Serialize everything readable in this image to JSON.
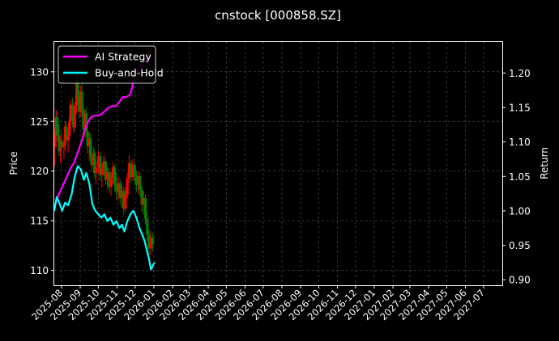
{
  "chart_data": {
    "type": "line",
    "title": "cnstock [000858.SZ]",
    "ylabel_left": "Price",
    "ylabel_right": "Return",
    "ylim_left": [
      108.5,
      133.0
    ],
    "ylim_right": [
      0.892,
      1.245
    ],
    "xlim": [
      "2025-07-20",
      "2027-08-01"
    ],
    "x_ticks": [
      "2025-08",
      "2025-09",
      "2025-10",
      "2025-11",
      "2025-12",
      "2026-01",
      "2026-02",
      "2026-03",
      "2026-04",
      "2026-05",
      "2026-06",
      "2026-07",
      "2026-08",
      "2026-09",
      "2026-10",
      "2026-11",
      "2026-12",
      "2027-01",
      "2027-02",
      "2027-03",
      "2027-04",
      "2027-05",
      "2027-06",
      "2027-07"
    ],
    "y_ticks_left": [
      "110",
      "115",
      "120",
      "125",
      "130"
    ],
    "y_ticks_right": [
      "0.90",
      "0.95",
      "1.00",
      "1.05",
      "1.10",
      "1.15",
      "1.20"
    ],
    "grid": true,
    "legend_position": "top-left",
    "colors": {
      "background": "#000000",
      "strategy": "#ff00ff",
      "buyhold": "#00ffff",
      "candle_up": "#ff0000",
      "candle_down": "#008000",
      "grid": "#555555"
    },
    "series": [
      {
        "name": "AI Strategy",
        "axis": "right",
        "points": [
          [
            "2025-07-20",
            1.005
          ],
          [
            "2025-07-28",
            1.025
          ],
          [
            "2025-08-05",
            1.04
          ],
          [
            "2025-08-10",
            1.05
          ],
          [
            "2025-08-16",
            1.062
          ],
          [
            "2025-08-22",
            1.07
          ],
          [
            "2025-08-28",
            1.085
          ],
          [
            "2025-09-03",
            1.1
          ],
          [
            "2025-09-08",
            1.115
          ],
          [
            "2025-09-13",
            1.128
          ],
          [
            "2025-09-18",
            1.135
          ],
          [
            "2025-09-24",
            1.138
          ],
          [
            "2025-09-30",
            1.138
          ],
          [
            "2025-10-06",
            1.14
          ],
          [
            "2025-10-12",
            1.145
          ],
          [
            "2025-10-18",
            1.15
          ],
          [
            "2025-10-24",
            1.152
          ],
          [
            "2025-10-30",
            1.152
          ],
          [
            "2025-11-05",
            1.158
          ],
          [
            "2025-11-10",
            1.165
          ],
          [
            "2025-11-16",
            1.165
          ],
          [
            "2025-11-22",
            1.168
          ],
          [
            "2025-11-26",
            1.178
          ],
          [
            "2025-11-30",
            1.2
          ],
          [
            "2025-12-06",
            1.205
          ],
          [
            "2025-12-14",
            1.212
          ],
          [
            "2025-12-22",
            1.225
          ],
          [
            "2025-12-27",
            1.232
          ]
        ]
      },
      {
        "name": "Buy-and-Hold",
        "axis": "right",
        "points": [
          [
            "2025-07-20",
            1.0
          ],
          [
            "2025-07-24",
            1.02
          ],
          [
            "2025-07-28",
            1.012
          ],
          [
            "2025-08-02",
            1.0
          ],
          [
            "2025-08-07",
            1.012
          ],
          [
            "2025-08-12",
            1.008
          ],
          [
            "2025-08-18",
            1.025
          ],
          [
            "2025-08-23",
            1.05
          ],
          [
            "2025-08-28",
            1.065
          ],
          [
            "2025-09-02",
            1.06
          ],
          [
            "2025-09-07",
            1.045
          ],
          [
            "2025-09-11",
            1.055
          ],
          [
            "2025-09-16",
            1.04
          ],
          [
            "2025-09-21",
            1.01
          ],
          [
            "2025-09-26",
            1.0
          ],
          [
            "2025-10-01",
            0.995
          ],
          [
            "2025-10-06",
            0.99
          ],
          [
            "2025-10-11",
            0.995
          ],
          [
            "2025-10-16",
            0.985
          ],
          [
            "2025-10-21",
            0.99
          ],
          [
            "2025-10-26",
            0.98
          ],
          [
            "2025-10-31",
            0.985
          ],
          [
            "2025-11-05",
            0.975
          ],
          [
            "2025-11-09",
            0.98
          ],
          [
            "2025-11-13",
            0.97
          ],
          [
            "2025-11-18",
            0.985
          ],
          [
            "2025-11-23",
            0.995
          ],
          [
            "2025-11-28",
            1.0
          ],
          [
            "2025-12-03",
            0.99
          ],
          [
            "2025-12-08",
            0.975
          ],
          [
            "2025-12-13",
            0.965
          ],
          [
            "2025-12-17",
            0.955
          ],
          [
            "2025-12-21",
            0.94
          ],
          [
            "2025-12-24",
            0.93
          ],
          [
            "2025-12-26",
            0.92
          ],
          [
            "2025-12-27",
            0.915
          ],
          [
            "2025-12-29",
            0.918
          ],
          [
            "2025-12-31",
            0.922
          ],
          [
            "2026-01-02",
            0.925
          ]
        ]
      }
    ],
    "candles": [
      {
        "date": "2025-07-21",
        "open": 122.5,
        "high": 124.3,
        "low": 120.5,
        "close": 123.8
      },
      {
        "date": "2025-07-23",
        "open": 123.8,
        "high": 126.2,
        "low": 122.4,
        "close": 125.4
      },
      {
        "date": "2025-07-25",
        "open": 125.4,
        "high": 126.0,
        "low": 123.0,
        "close": 123.6
      },
      {
        "date": "2025-07-28",
        "open": 123.6,
        "high": 124.8,
        "low": 121.5,
        "close": 122.0
      },
      {
        "date": "2025-07-30",
        "open": 122.0,
        "high": 123.6,
        "low": 120.8,
        "close": 123.1
      },
      {
        "date": "2025-08-01",
        "open": 123.1,
        "high": 124.0,
        "low": 121.9,
        "close": 122.4
      },
      {
        "date": "2025-08-05",
        "open": 122.4,
        "high": 123.5,
        "low": 121.2,
        "close": 122.9
      },
      {
        "date": "2025-08-07",
        "open": 122.9,
        "high": 125.0,
        "low": 122.0,
        "close": 124.5
      },
      {
        "date": "2025-08-09",
        "open": 124.5,
        "high": 124.9,
        "low": 122.6,
        "close": 123.1
      },
      {
        "date": "2025-08-12",
        "open": 123.1,
        "high": 124.2,
        "low": 121.9,
        "close": 123.6
      },
      {
        "date": "2025-08-14",
        "open": 123.6,
        "high": 125.6,
        "low": 123.0,
        "close": 125.0
      },
      {
        "date": "2025-08-16",
        "open": 125.0,
        "high": 127.2,
        "low": 124.2,
        "close": 126.7
      },
      {
        "date": "2025-08-19",
        "open": 126.7,
        "high": 127.4,
        "low": 124.7,
        "close": 125.2
      },
      {
        "date": "2025-08-21",
        "open": 125.2,
        "high": 126.3,
        "low": 123.8,
        "close": 124.4
      },
      {
        "date": "2025-08-23",
        "open": 124.4,
        "high": 127.0,
        "low": 124.0,
        "close": 126.6
      },
      {
        "date": "2025-08-26",
        "open": 126.6,
        "high": 130.0,
        "low": 125.8,
        "close": 129.3
      },
      {
        "date": "2025-08-28",
        "open": 129.3,
        "high": 130.4,
        "low": 126.8,
        "close": 127.5
      },
      {
        "date": "2025-08-30",
        "open": 127.5,
        "high": 128.2,
        "low": 125.3,
        "close": 126.0
      },
      {
        "date": "2025-09-02",
        "open": 126.0,
        "high": 128.6,
        "low": 125.4,
        "close": 128.0
      },
      {
        "date": "2025-09-04",
        "open": 128.0,
        "high": 128.8,
        "low": 125.6,
        "close": 126.2
      },
      {
        "date": "2025-09-06",
        "open": 126.2,
        "high": 126.9,
        "low": 123.6,
        "close": 124.2
      },
      {
        "date": "2025-09-09",
        "open": 124.2,
        "high": 126.2,
        "low": 123.4,
        "close": 125.8
      },
      {
        "date": "2025-09-11",
        "open": 125.8,
        "high": 126.4,
        "low": 123.5,
        "close": 124.0
      },
      {
        "date": "2025-09-13",
        "open": 124.0,
        "high": 124.6,
        "low": 121.8,
        "close": 122.5
      },
      {
        "date": "2025-09-16",
        "open": 122.5,
        "high": 123.9,
        "low": 121.0,
        "close": 123.3
      },
      {
        "date": "2025-09-18",
        "open": 123.3,
        "high": 123.8,
        "low": 120.9,
        "close": 121.5
      },
      {
        "date": "2025-09-20",
        "open": 121.5,
        "high": 122.6,
        "low": 119.9,
        "close": 120.6
      },
      {
        "date": "2025-09-23",
        "open": 120.6,
        "high": 122.4,
        "low": 119.8,
        "close": 121.8
      },
      {
        "date": "2025-09-25",
        "open": 121.8,
        "high": 122.2,
        "low": 119.2,
        "close": 119.8
      },
      {
        "date": "2025-09-27",
        "open": 119.8,
        "high": 121.0,
        "low": 118.7,
        "close": 120.4
      },
      {
        "date": "2025-10-01",
        "open": 120.4,
        "high": 122.0,
        "low": 119.8,
        "close": 121.5
      },
      {
        "date": "2025-10-04",
        "open": 121.5,
        "high": 121.9,
        "low": 119.0,
        "close": 119.6
      },
      {
        "date": "2025-10-07",
        "open": 119.6,
        "high": 120.8,
        "low": 118.4,
        "close": 120.2
      },
      {
        "date": "2025-10-10",
        "open": 120.2,
        "high": 121.6,
        "low": 119.5,
        "close": 121.0
      },
      {
        "date": "2025-10-13",
        "open": 121.0,
        "high": 121.4,
        "low": 118.6,
        "close": 119.1
      },
      {
        "date": "2025-10-16",
        "open": 119.1,
        "high": 120.5,
        "low": 118.2,
        "close": 119.9
      },
      {
        "date": "2025-10-19",
        "open": 119.9,
        "high": 120.3,
        "low": 117.8,
        "close": 118.4
      },
      {
        "date": "2025-10-22",
        "open": 118.4,
        "high": 119.9,
        "low": 117.5,
        "close": 119.3
      },
      {
        "date": "2025-10-25",
        "open": 119.3,
        "high": 120.9,
        "low": 118.7,
        "close": 120.4
      },
      {
        "date": "2025-10-28",
        "open": 120.4,
        "high": 120.7,
        "low": 118.0,
        "close": 118.6
      },
      {
        "date": "2025-10-31",
        "open": 118.6,
        "high": 119.8,
        "low": 117.2,
        "close": 117.9
      },
      {
        "date": "2025-11-03",
        "open": 117.9,
        "high": 119.4,
        "low": 117.0,
        "close": 118.8
      },
      {
        "date": "2025-11-06",
        "open": 118.8,
        "high": 119.2,
        "low": 116.6,
        "close": 117.3
      },
      {
        "date": "2025-11-09",
        "open": 117.3,
        "high": 118.6,
        "low": 116.3,
        "close": 118.0
      },
      {
        "date": "2025-11-12",
        "open": 118.0,
        "high": 118.4,
        "low": 115.6,
        "close": 116.2
      },
      {
        "date": "2025-11-15",
        "open": 116.2,
        "high": 118.4,
        "low": 115.9,
        "close": 117.6
      },
      {
        "date": "2025-11-18",
        "open": 117.6,
        "high": 119.8,
        "low": 117.2,
        "close": 119.3
      },
      {
        "date": "2025-11-21",
        "open": 119.3,
        "high": 121.6,
        "low": 118.8,
        "close": 120.8
      },
      {
        "date": "2025-11-24",
        "open": 120.8,
        "high": 121.1,
        "low": 118.8,
        "close": 119.4
      },
      {
        "date": "2025-11-27",
        "open": 119.4,
        "high": 121.2,
        "low": 119.0,
        "close": 120.6
      },
      {
        "date": "2025-11-30",
        "open": 120.6,
        "high": 121.0,
        "low": 118.8,
        "close": 119.5
      },
      {
        "date": "2025-12-03",
        "open": 119.5,
        "high": 120.0,
        "low": 117.9,
        "close": 118.6
      },
      {
        "date": "2025-12-06",
        "open": 118.6,
        "high": 120.0,
        "low": 117.7,
        "close": 119.5
      },
      {
        "date": "2025-12-09",
        "open": 119.5,
        "high": 119.9,
        "low": 117.4,
        "close": 118.1
      },
      {
        "date": "2025-12-12",
        "open": 118.1,
        "high": 118.5,
        "low": 115.9,
        "close": 116.6
      },
      {
        "date": "2025-12-15",
        "open": 116.6,
        "high": 118.0,
        "low": 115.6,
        "close": 117.3
      },
      {
        "date": "2025-12-18",
        "open": 117.3,
        "high": 117.7,
        "low": 114.6,
        "close": 115.2
      },
      {
        "date": "2025-12-21",
        "open": 115.2,
        "high": 115.8,
        "low": 112.9,
        "close": 113.6
      },
      {
        "date": "2025-12-24",
        "open": 113.6,
        "high": 114.1,
        "low": 111.6,
        "close": 112.2
      },
      {
        "date": "2025-12-27",
        "open": 112.2,
        "high": 114.0,
        "low": 111.5,
        "close": 113.3
      },
      {
        "date": "2025-12-30",
        "open": 113.3,
        "high": 113.8,
        "low": 111.9,
        "close": 112.6
      }
    ]
  }
}
